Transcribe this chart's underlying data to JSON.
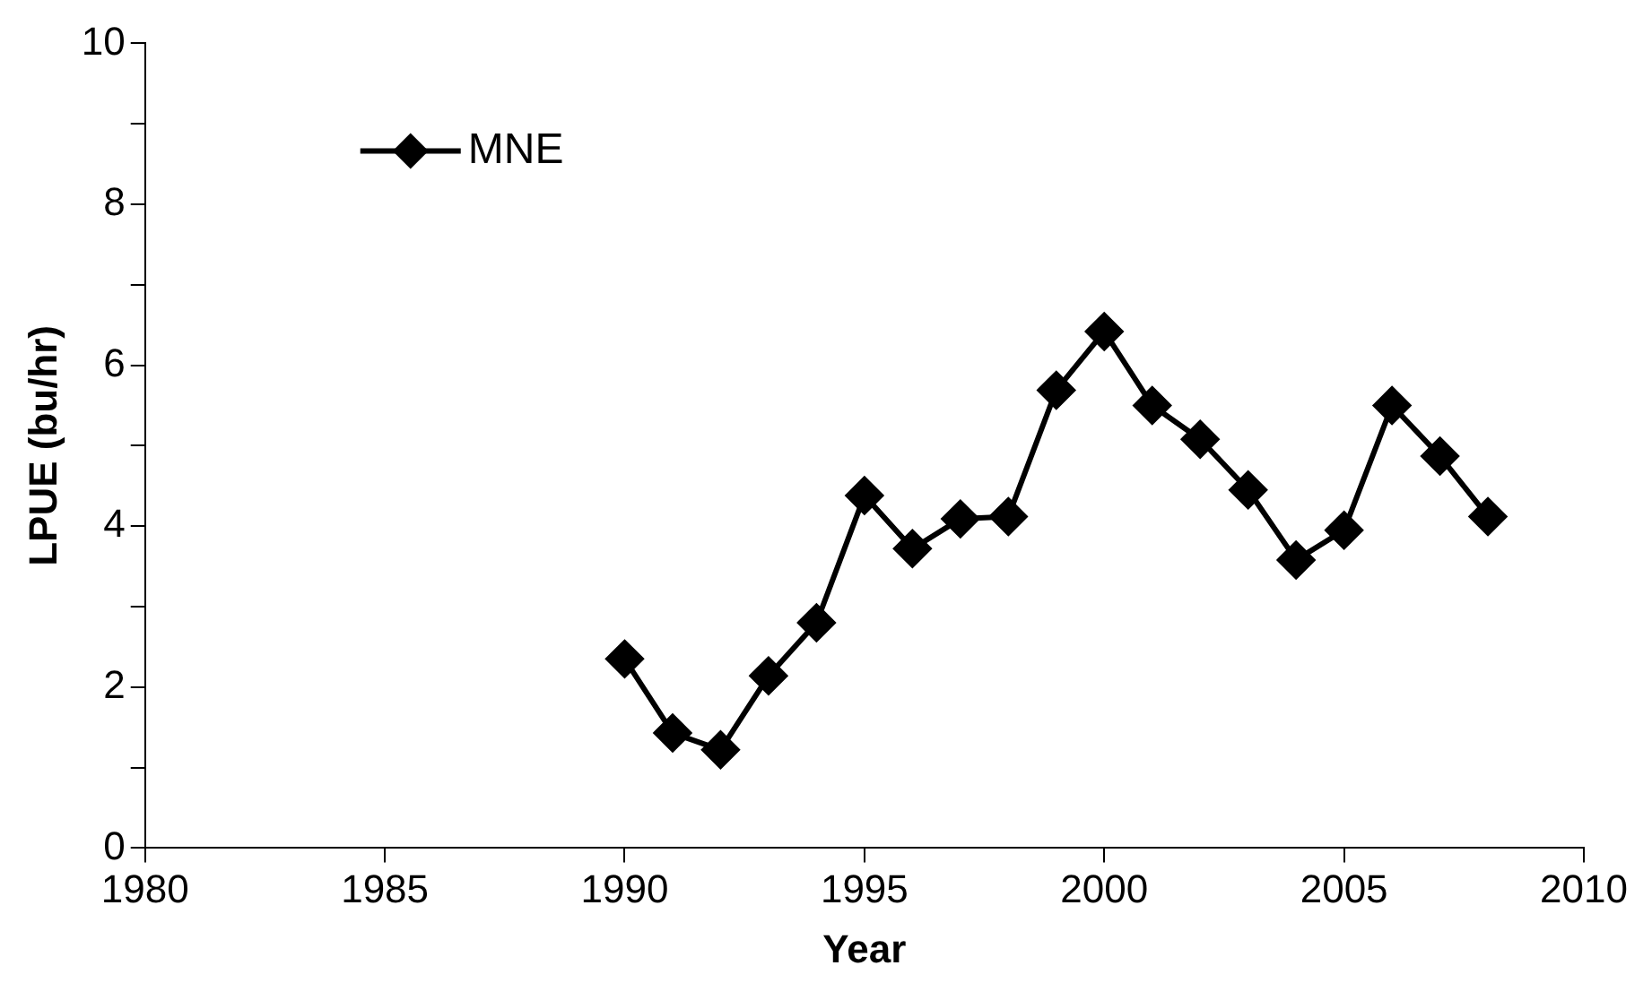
{
  "chart_data": {
    "type": "line",
    "xlabel": "Year",
    "ylabel": "LPUE (bu/hr)",
    "x": [
      1990,
      1991,
      1992,
      1993,
      1994,
      1995,
      1996,
      1997,
      1998,
      1999,
      2000,
      2001,
      2002,
      2003,
      2004,
      2005,
      2006,
      2007,
      2008
    ],
    "series": [
      {
        "name": "MNE",
        "color": "#000000",
        "values": [
          2.35,
          1.43,
          1.22,
          2.14,
          2.8,
          4.38,
          3.72,
          4.09,
          4.12,
          5.69,
          6.42,
          5.5,
          5.08,
          4.45,
          3.58,
          3.95,
          5.5,
          4.87,
          4.12
        ]
      }
    ],
    "xlim": [
      1980,
      2010
    ],
    "xticks": [
      1980,
      1985,
      1990,
      1995,
      2000,
      2005,
      2010
    ],
    "ylim": [
      0,
      10
    ],
    "yticks": [
      0,
      {
        "value": 1,
        "label": null
      },
      2,
      {
        "value": 3,
        "label": null
      },
      4,
      {
        "value": 5,
        "label": null
      },
      6,
      {
        "value": 7,
        "label": null
      },
      8,
      {
        "value": 9,
        "label": null
      },
      10
    ],
    "grid": false,
    "legend": "top left",
    "marker": "diamond",
    "line_style": "solid"
  }
}
